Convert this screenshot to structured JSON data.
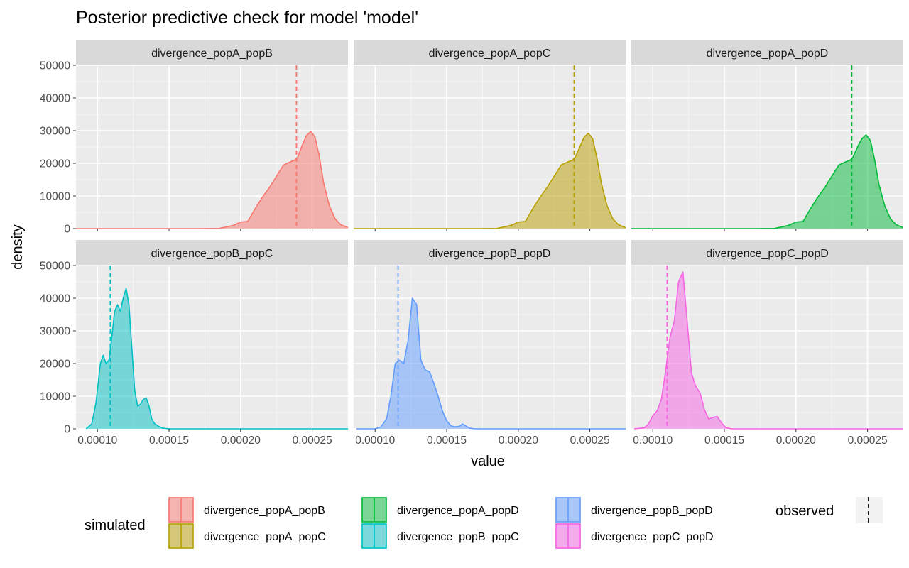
{
  "chart_data": {
    "type": "area",
    "title": "Posterior predictive check for model 'model'",
    "xlabel": "value",
    "ylabel": "density",
    "xlim": [
      8.5e-05,
      0.000275
    ],
    "ylim": [
      0,
      50000
    ],
    "x_ticks": [
      0.0001,
      0.00015,
      0.0002,
      0.00025
    ],
    "x_tick_labels": [
      "0.00010",
      "0.00015",
      "0.00020",
      "0.00025"
    ],
    "y_ticks": [
      0,
      10000,
      20000,
      30000,
      40000,
      50000
    ],
    "y_tick_labels": [
      "0",
      "10000",
      "20000",
      "30000",
      "40000",
      "50000"
    ],
    "grid": true,
    "legend_position": "bottom",
    "legend": {
      "simulated_title": "simulated",
      "observed_title": "observed"
    },
    "panels": [
      {
        "name": "divergence_popA_popB",
        "color": "#F8766D",
        "observed": 0.000239,
        "x": [
          8.5e-05,
          0.00017,
          0.000185,
          0.000195,
          0.0002,
          0.000205,
          0.00021,
          0.000215,
          0.00022,
          0.000225,
          0.00023,
          0.000235,
          0.000238,
          0.00024,
          0.000243,
          0.000246,
          0.000249,
          0.000252,
          0.000255,
          0.000258,
          0.000262,
          0.000266,
          0.00027,
          0.000275
        ],
        "y": [
          0,
          0,
          50,
          1000,
          2000,
          2200,
          6000,
          9500,
          12500,
          16000,
          19500,
          20500,
          21000,
          22000,
          25500,
          28500,
          29800,
          28000,
          22000,
          14000,
          7000,
          3000,
          1200,
          300
        ]
      },
      {
        "name": "divergence_popA_popC",
        "color": "#B79F00",
        "observed": 0.000239,
        "x": [
          8.5e-05,
          0.00017,
          0.000185,
          0.000195,
          0.0002,
          0.000205,
          0.00021,
          0.000215,
          0.00022,
          0.000225,
          0.00023,
          0.000235,
          0.000238,
          0.00024,
          0.000243,
          0.000246,
          0.000249,
          0.000252,
          0.000255,
          0.000258,
          0.000262,
          0.000266,
          0.00027,
          0.000275
        ],
        "y": [
          0,
          0,
          50,
          1000,
          2000,
          2200,
          6000,
          9500,
          12500,
          16000,
          19500,
          20500,
          21000,
          22000,
          25000,
          28000,
          29200,
          27500,
          21500,
          14000,
          7000,
          3000,
          1200,
          300
        ]
      },
      {
        "name": "divergence_popA_popD",
        "color": "#00BA38",
        "observed": 0.000239,
        "x": [
          8.5e-05,
          0.00017,
          0.000185,
          0.000195,
          0.0002,
          0.000205,
          0.00021,
          0.000215,
          0.00022,
          0.000225,
          0.00023,
          0.000235,
          0.000238,
          0.00024,
          0.000243,
          0.000246,
          0.000249,
          0.000252,
          0.000255,
          0.000258,
          0.000262,
          0.000266,
          0.00027,
          0.000275
        ],
        "y": [
          0,
          0,
          50,
          1000,
          2000,
          2200,
          6000,
          9500,
          12500,
          16000,
          19500,
          20500,
          21000,
          22000,
          25000,
          27500,
          28700,
          27000,
          21000,
          13500,
          7000,
          3000,
          1200,
          300
        ]
      },
      {
        "name": "divergence_popB_popC",
        "color": "#00BFC4",
        "observed": 0.000109,
        "x": [
          9.2e-05,
          9.6e-05,
          9.9e-05,
          0.000102,
          0.000104,
          0.000106,
          0.000108,
          0.00011,
          0.000112,
          0.000114,
          0.000116,
          0.000118,
          0.00012,
          0.000122,
          0.000124,
          0.000126,
          0.000128,
          0.00013,
          0.000132,
          0.000134,
          0.000136,
          0.000138,
          0.00014,
          0.000143,
          0.000146,
          0.00015,
          0.00016,
          0.000275
        ],
        "y": [
          0,
          1500,
          8000,
          20000,
          22500,
          20000,
          21000,
          28000,
          36000,
          38000,
          36000,
          40000,
          43000,
          38000,
          25000,
          12000,
          7000,
          7500,
          9000,
          9500,
          7000,
          3000,
          1500,
          700,
          200,
          0,
          0,
          0
        ]
      },
      {
        "name": "divergence_popB_popD",
        "color": "#619CFF",
        "observed": 0.000116,
        "x": [
          8.7e-05,
          0.0001,
          0.000104,
          0.000108,
          0.000111,
          0.000114,
          0.000117,
          0.00012,
          0.000123,
          0.000126,
          0.000129,
          0.000132,
          0.000135,
          0.000138,
          0.000141,
          0.000144,
          0.000147,
          0.00015,
          0.000153,
          0.000156,
          0.000159,
          0.000161,
          0.000163,
          0.000166,
          0.00017,
          0.000275
        ],
        "y": [
          0,
          0,
          600,
          3000,
          10000,
          20000,
          21000,
          20000,
          27000,
          40000,
          38000,
          21000,
          18000,
          17500,
          14000,
          10000,
          5500,
          2500,
          900,
          600,
          800,
          1500,
          1000,
          200,
          0,
          0
        ]
      },
      {
        "name": "divergence_popC_popD",
        "color": "#F564E3",
        "observed": 0.00011,
        "x": [
          8.7e-05,
          9.4e-05,
          9.7e-05,
          0.0001,
          0.000103,
          0.000106,
          0.000109,
          0.000112,
          0.000115,
          0.000118,
          0.000121,
          0.000124,
          0.000127,
          0.00013,
          0.000133,
          0.000136,
          0.000139,
          0.000142,
          0.000145,
          0.000148,
          0.000151,
          0.000155,
          0.000275
        ],
        "y": [
          0,
          300,
          1500,
          4000,
          5500,
          9000,
          18000,
          28000,
          33000,
          45000,
          48000,
          33000,
          17000,
          13000,
          11000,
          6000,
          3000,
          3500,
          3800,
          1800,
          400,
          0,
          0
        ]
      }
    ]
  }
}
